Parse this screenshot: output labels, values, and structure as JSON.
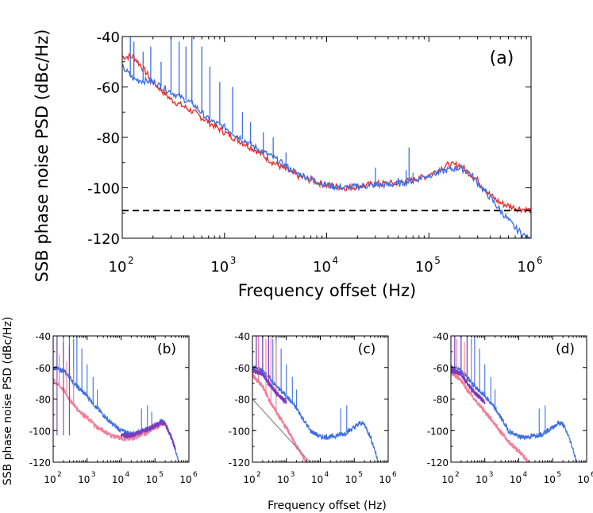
{
  "colors": {
    "blue": "#3f6fe0",
    "red": "#e8302a",
    "pink": "#f27c98",
    "purple": "#7a3bbf",
    "gray": "#8a8a8a",
    "black": "#000000"
  },
  "labels": {
    "ylabel": "SSB phase noise PSD (dBc/Hz)",
    "xlabel": "Frequency offset (Hz)",
    "ylabel_small": "SSB phase noise PSD (dBc/Hz)",
    "xlabel_small": "Frequency offset (Hz)"
  },
  "chart_data": [
    {
      "id": "a",
      "type": "line",
      "panel_label": "(a)",
      "xscale": "log",
      "xlim": [
        100,
        1000000
      ],
      "ylim": [
        -120,
        -40
      ],
      "yticks": [
        -120,
        -100,
        -80,
        -60,
        -40
      ],
      "xtick_labels": [
        "10",
        "10",
        "10",
        "10",
        "10"
      ],
      "xtick_exponents": [
        "2",
        "3",
        "4",
        "5",
        "6"
      ],
      "ytick_labels": [
        "-120",
        "-100",
        "-80",
        "-60",
        "-40"
      ],
      "series": [
        {
          "color": "#e8302a",
          "x": [
            100,
            130,
            200,
            300,
            500,
            700,
            1000,
            2000,
            3000,
            5000,
            10000,
            15000,
            20000,
            30000,
            50000,
            70000,
            100000,
            150000,
            200000,
            300000,
            400000,
            500000,
            700000,
            1000000
          ],
          "y": [
            -48,
            -48,
            -58,
            -65,
            -70,
            -74,
            -78,
            -85,
            -90,
            -95,
            -99,
            -100,
            -99.5,
            -98.5,
            -98,
            -97,
            -95,
            -91,
            -91,
            -97,
            -103,
            -106,
            -108,
            -109
          ],
          "spikes": []
        },
        {
          "color": "#3f6fe0",
          "x": [
            100,
            130,
            200,
            300,
            500,
            700,
            1000,
            2000,
            3000,
            5000,
            10000,
            15000,
            20000,
            30000,
            50000,
            70000,
            100000,
            150000,
            200000,
            250000,
            300000,
            400000,
            500000,
            700000,
            1000000
          ],
          "y": [
            -52,
            -57,
            -58,
            -62,
            -67,
            -73,
            -76,
            -84,
            -88,
            -94,
            -99,
            -100,
            -99.5,
            -99,
            -98.5,
            -97,
            -95,
            -93,
            -92,
            -94,
            -98,
            -104,
            -109,
            -116,
            -121
          ],
          "spikes": [
            [
              120,
              -40
            ],
            [
              130,
              -42
            ],
            [
              160,
              -46
            ],
            [
              190,
              -44
            ],
            [
              240,
              -50
            ],
            [
              300,
              -40
            ],
            [
              360,
              -42
            ],
            [
              420,
              -44
            ],
            [
              480,
              -40
            ],
            [
              600,
              -44
            ],
            [
              720,
              -52
            ],
            [
              900,
              -58
            ],
            [
              1200,
              -60
            ],
            [
              1500,
              -70
            ],
            [
              1800,
              -74
            ],
            [
              2400,
              -78
            ],
            [
              3000,
              -80
            ],
            [
              4000,
              -86
            ],
            [
              30000,
              -92
            ],
            [
              50000,
              -96
            ],
            [
              60000,
              -93
            ],
            [
              64000,
              -84
            ],
            [
              70000,
              -94
            ]
          ]
        }
      ],
      "reference_line": {
        "y": -109,
        "style": "dashed",
        "color": "#000000"
      }
    },
    {
      "id": "b",
      "type": "line",
      "panel_label": "(b)",
      "xscale": "log",
      "xlim": [
        100,
        1000000
      ],
      "ylim": [
        -120,
        -40
      ],
      "yticks": [
        -120,
        -100,
        -80,
        -60,
        -40
      ],
      "xtick_labels": [
        "10",
        "10",
        "10",
        "10",
        "10"
      ],
      "xtick_exponents": [
        "2",
        "3",
        "4",
        "5",
        "6"
      ],
      "ytick_labels": [
        "-120",
        "-100",
        "-80",
        "-60",
        "-40"
      ],
      "series": [
        {
          "color": "#3f6fe0",
          "x": [
            100,
            200,
            300,
            500,
            1000,
            2000,
            3000,
            5000,
            10000,
            20000,
            50000,
            100000,
            150000,
            200000,
            300000,
            400000,
            500000
          ],
          "y": [
            -60,
            -62,
            -66,
            -72,
            -78,
            -86,
            -90,
            -95,
            -100,
            -102,
            -100,
            -97,
            -94,
            -95,
            -104,
            -112,
            -120
          ],
          "spikes": [
            [
              130,
              -40
            ],
            [
              200,
              -40
            ],
            [
              300,
              -40
            ],
            [
              400,
              -42
            ],
            [
              500,
              -40
            ],
            [
              700,
              -48
            ],
            [
              1000,
              -58
            ],
            [
              1500,
              -66
            ],
            [
              2000,
              -74
            ],
            [
              40000,
              -86
            ],
            [
              60000,
              -84
            ],
            [
              80000,
              -88
            ]
          ]
        },
        {
          "color": "#f27c98",
          "x": [
            100,
            200,
            300,
            500,
            1000,
            2000,
            3000,
            5000,
            10000,
            20000,
            50000,
            100000,
            150000
          ],
          "y": [
            -68,
            -74,
            -80,
            -86,
            -92,
            -98,
            -100,
            -103,
            -105,
            -105,
            -102,
            -98,
            -96
          ],
          "spikes": [
            [
              150,
              -52
            ],
            [
              250,
              -56
            ],
            [
              400,
              -60
            ]
          ]
        },
        {
          "color": "#7a3bbf",
          "x": [
            10000,
            20000,
            50000,
            100000,
            150000,
            200000,
            300000,
            400000
          ],
          "y": [
            -103,
            -103,
            -100,
            -97,
            -95,
            -96,
            -104,
            -112
          ],
          "spikes": [
            [
              130,
              -40
            ],
            [
              200,
              -44
            ],
            [
              300,
              -46
            ]
          ]
        }
      ]
    },
    {
      "id": "c",
      "type": "line",
      "panel_label": "(c)",
      "xscale": "log",
      "xlim": [
        100,
        1000000
      ],
      "ylim": [
        -120,
        -40
      ],
      "yticks": [
        -120,
        -100,
        -80,
        -60,
        -40
      ],
      "xtick_labels": [
        "10",
        "10",
        "10",
        "10",
        "10"
      ],
      "xtick_exponents": [
        "2",
        "3",
        "4",
        "5",
        "6"
      ],
      "ytick_labels": [
        "-120",
        "-100",
        "-80",
        "-60",
        "-40"
      ],
      "series": [
        {
          "color": "#3f6fe0",
          "x": [
            100,
            200,
            300,
            500,
            1000,
            2000,
            3000,
            5000,
            10000,
            20000,
            50000,
            100000,
            150000,
            200000,
            300000,
            400000,
            500000
          ],
          "y": [
            -60,
            -62,
            -66,
            -72,
            -78,
            -86,
            -92,
            -100,
            -104,
            -104,
            -102,
            -98,
            -95,
            -96,
            -104,
            -112,
            -120
          ],
          "spikes": [
            [
              130,
              -40
            ],
            [
              200,
              -40
            ],
            [
              300,
              -40
            ],
            [
              400,
              -42
            ],
            [
              500,
              -40
            ],
            [
              700,
              -48
            ],
            [
              1000,
              -58
            ],
            [
              1500,
              -66
            ],
            [
              2000,
              -74
            ],
            [
              40000,
              -86
            ],
            [
              60000,
              -84
            ]
          ]
        },
        {
          "color": "#f27c98",
          "x": [
            100,
            200,
            300,
            500,
            1000,
            2000,
            3000,
            4000
          ],
          "y": [
            -65,
            -72,
            -80,
            -88,
            -98,
            -110,
            -116,
            -120
          ],
          "spikes": [
            [
              150,
              -40
            ],
            [
              250,
              -42
            ],
            [
              350,
              -40
            ],
            [
              500,
              -44
            ]
          ]
        },
        {
          "color": "#7a3bbf",
          "x": [
            100,
            200,
            300,
            500,
            1000
          ],
          "y": [
            -62,
            -64,
            -70,
            -76,
            -82
          ],
          "spikes": [
            [
              130,
              -40
            ],
            [
              200,
              -40
            ],
            [
              300,
              -42
            ]
          ]
        },
        {
          "color": "#8a8a8a",
          "x": [
            100,
            5000
          ],
          "y": [
            -80,
            -120
          ],
          "spikes": []
        }
      ]
    },
    {
      "id": "d",
      "type": "line",
      "panel_label": "(d)",
      "xscale": "log",
      "xlim": [
        100,
        1000000
      ],
      "ylim": [
        -120,
        -40
      ],
      "yticks": [
        -120,
        -100,
        -80,
        -60,
        -40
      ],
      "xtick_labels": [
        "10",
        "10",
        "10",
        "10",
        "10"
      ],
      "xtick_exponents": [
        "2",
        "3",
        "4",
        "5",
        "6"
      ],
      "ytick_labels": [
        "-120",
        "-100",
        "-80",
        "-60",
        "-40"
      ],
      "series": [
        {
          "color": "#3f6fe0",
          "x": [
            100,
            200,
            300,
            500,
            1000,
            2000,
            3000,
            5000,
            10000,
            20000,
            50000,
            100000,
            150000,
            200000,
            300000,
            400000,
            500000
          ],
          "y": [
            -60,
            -62,
            -66,
            -72,
            -78,
            -86,
            -92,
            -100,
            -104,
            -104,
            -102,
            -98,
            -95,
            -96,
            -104,
            -112,
            -120
          ],
          "spikes": [
            [
              130,
              -40
            ],
            [
              200,
              -40
            ],
            [
              300,
              -40
            ],
            [
              400,
              -42
            ],
            [
              500,
              -40
            ],
            [
              700,
              -48
            ],
            [
              1000,
              -58
            ],
            [
              1500,
              -66
            ],
            [
              2000,
              -74
            ],
            [
              40000,
              -86
            ],
            [
              60000,
              -84
            ]
          ]
        },
        {
          "color": "#f27c98",
          "x": [
            100,
            200,
            300,
            500,
            1000,
            2000,
            3000,
            5000,
            10000,
            20000
          ],
          "y": [
            -63,
            -68,
            -74,
            -80,
            -88,
            -96,
            -101,
            -107,
            -113,
            -120
          ],
          "spikes": [
            [
              150,
              -42
            ],
            [
              250,
              -44
            ],
            [
              400,
              -46
            ]
          ]
        },
        {
          "color": "#7a3bbf",
          "x": [
            100,
            200,
            300,
            500,
            1000
          ],
          "y": [
            -62,
            -64,
            -70,
            -76,
            -82
          ],
          "spikes": [
            [
              130,
              -40
            ],
            [
              200,
              -40
            ],
            [
              300,
              -42
            ]
          ]
        }
      ]
    }
  ]
}
